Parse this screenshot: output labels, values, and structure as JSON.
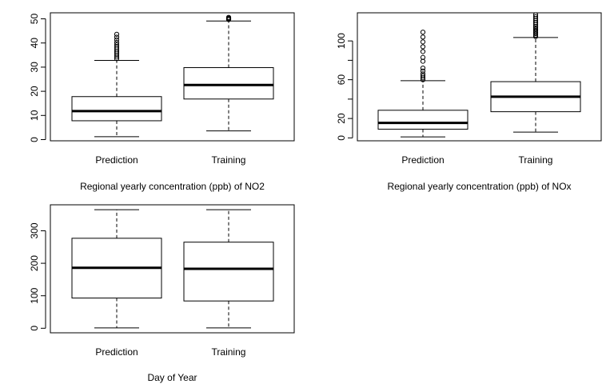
{
  "chart_data": [
    {
      "type": "boxplot",
      "xlabel": "Regional yearly concentration (ppb) of NO2",
      "ylabel": "",
      "categories": [
        "Prediction",
        "Training"
      ],
      "ylim": [
        -0.5,
        52.5
      ],
      "yticks": [
        0,
        10,
        20,
        30,
        40,
        50
      ],
      "boxes": [
        {
          "name": "Prediction",
          "whisker_low": 1.2,
          "q1": 7.8,
          "median": 11.8,
          "q3": 17.8,
          "whisker_high": 32.8,
          "outliers": [
            33.5,
            34.2,
            35.0,
            35.8,
            36.6,
            37.5,
            38.3,
            39.2,
            40.2,
            41.3,
            42.4,
            43.6
          ]
        },
        {
          "name": "Training",
          "whisker_low": 3.6,
          "q1": 16.8,
          "median": 22.6,
          "q3": 29.8,
          "whisker_high": 49.1,
          "outliers": [
            49.7,
            50.0,
            50.3,
            50.6
          ]
        }
      ]
    },
    {
      "type": "boxplot",
      "xlabel": "Regional yearly concentration (ppb) of NOx",
      "ylabel": "",
      "categories": [
        "Prediction",
        "Training"
      ],
      "ylim": [
        -3,
        129
      ],
      "yticks": [
        0,
        20,
        60,
        100
      ],
      "yminor": [
        40,
        80
      ],
      "boxes": [
        {
          "name": "Prediction",
          "whisker_low": 1.0,
          "q1": 9.0,
          "median": 15.5,
          "q3": 28.5,
          "whisker_high": 59.0,
          "outliers": [
            60,
            62,
            64,
            66,
            69,
            72,
            79,
            83,
            89,
            94,
            99,
            104,
            109
          ]
        },
        {
          "name": "Training",
          "whisker_low": 6.0,
          "q1": 27.0,
          "median": 42.5,
          "q3": 58.0,
          "whisker_high": 103.5,
          "outliers": [
            104.5,
            106,
            107.5,
            109,
            110.5,
            112,
            113.5,
            115,
            117,
            119,
            121,
            123,
            125,
            127
          ]
        }
      ]
    },
    {
      "type": "boxplot",
      "xlabel": "Day of Year",
      "ylabel": "",
      "categories": [
        "Prediction",
        "Training"
      ],
      "ylim": [
        -14,
        380
      ],
      "yticks": [
        0,
        100,
        200,
        300
      ],
      "boxes": [
        {
          "name": "Prediction",
          "whisker_low": 1,
          "q1": 93,
          "median": 186,
          "q3": 277,
          "whisker_high": 365,
          "outliers": []
        },
        {
          "name": "Training",
          "whisker_low": 1,
          "q1": 84,
          "median": 183,
          "q3": 265,
          "whisker_high": 365,
          "outliers": []
        }
      ]
    }
  ]
}
